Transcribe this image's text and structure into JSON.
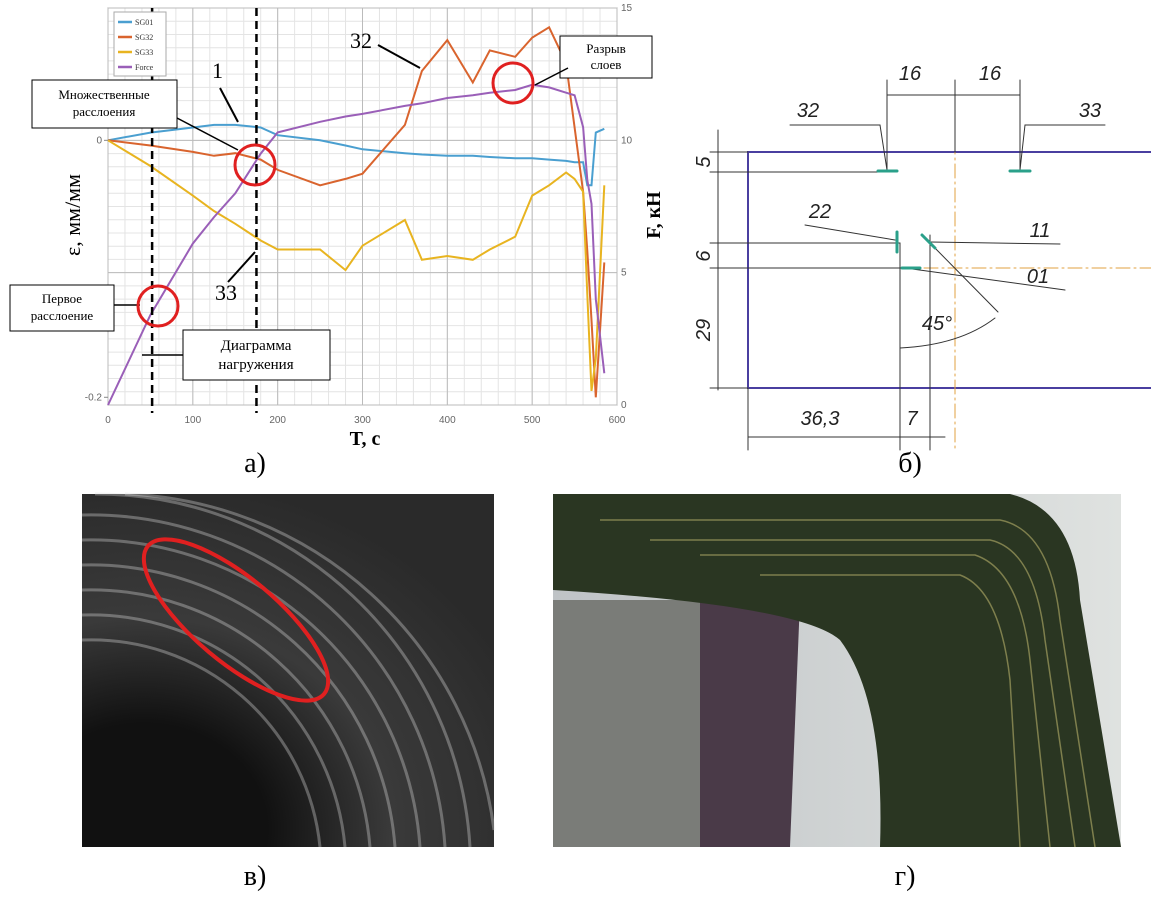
{
  "chart_data": {
    "type": "line",
    "x_label": "T, c",
    "y_label": "ε, мм/мм",
    "y2_label": "F, кН",
    "x": [
      0,
      50,
      100,
      125,
      150,
      180,
      200,
      250,
      280,
      300,
      350,
      370,
      400,
      430,
      450,
      480,
      500,
      520,
      540,
      550,
      560,
      565,
      570,
      575,
      585
    ],
    "series": [
      {
        "name": "SG01",
        "color": "#4a9fd0",
        "values": [
          0,
          0.006,
          0.01,
          0.012,
          0.012,
          0.01,
          0.004,
          0,
          -0.004,
          -0.007,
          -0.01,
          -0.011,
          -0.012,
          -0.012,
          -0.013,
          -0.014,
          -0.014,
          -0.015,
          -0.016,
          -0.017,
          -0.017,
          -0.035,
          -0.035,
          0.006,
          0.009
        ]
      },
      {
        "name": "SG32",
        "color": "#d9642e",
        "values": [
          0,
          -0.004,
          -0.009,
          -0.012,
          -0.01,
          -0.015,
          -0.023,
          -0.035,
          -0.03,
          -0.026,
          0.012,
          0.054,
          0.078,
          0.045,
          0.07,
          0.065,
          0.08,
          0.088,
          0.06,
          0.01,
          -0.04,
          -0.086,
          -0.14,
          -0.2,
          -0.095
        ]
      },
      {
        "name": "SG33",
        "color": "#e8b420",
        "values": [
          0,
          -0.02,
          -0.043,
          -0.055,
          -0.065,
          -0.078,
          -0.085,
          -0.085,
          -0.101,
          -0.082,
          -0.062,
          -0.093,
          -0.09,
          -0.093,
          -0.085,
          -0.075,
          -0.043,
          -0.035,
          -0.025,
          -0.03,
          -0.04,
          -0.12,
          -0.195,
          -0.17,
          -0.035
        ]
      },
      {
        "name": "Force",
        "color": "#9a5fb8",
        "axis": "y2",
        "values": [
          0,
          3.4,
          6.1,
          7.1,
          8,
          9.5,
          10.3,
          10.7,
          10.9,
          11,
          11.3,
          11.4,
          11.6,
          11.7,
          11.8,
          11.9,
          12.1,
          12,
          11.8,
          11.7,
          10.5,
          8.5,
          7.6,
          4,
          1.2
        ]
      }
    ],
    "xlim": [
      0,
      600
    ],
    "xticks": [
      0,
      100,
      200,
      300,
      400,
      500,
      600
    ],
    "ylim": [
      -0.206,
      0.103
    ],
    "yticks": [
      -0.2,
      0
    ],
    "y2lim": [
      0,
      15
    ],
    "y2ticks": [
      0,
      5,
      10,
      15
    ],
    "grid": true,
    "legend": "upper left",
    "reference_lines": [
      52,
      175
    ],
    "annotations": {
      "n1": "1",
      "n32": "32",
      "n33": "33",
      "multi": [
        "Множественные",
        "расслоения"
      ],
      "rupture": [
        "Разрыв",
        "слоев"
      ],
      "first": [
        "Первое",
        "расслоение"
      ],
      "loading": [
        "Диаграмма",
        "нагружения"
      ]
    }
  },
  "figure": {
    "panel_labels": [
      "а)",
      "б)",
      "в)",
      "г)"
    ],
    "drawing": {
      "d16a": "16",
      "d16b": "16",
      "g32": "32",
      "g33": "33",
      "d5": "5",
      "g22": "22",
      "g11": "11",
      "d6": "6",
      "g01": "01",
      "d29": "29",
      "a45": "45°",
      "d36": "36,3",
      "d7": "7"
    }
  }
}
